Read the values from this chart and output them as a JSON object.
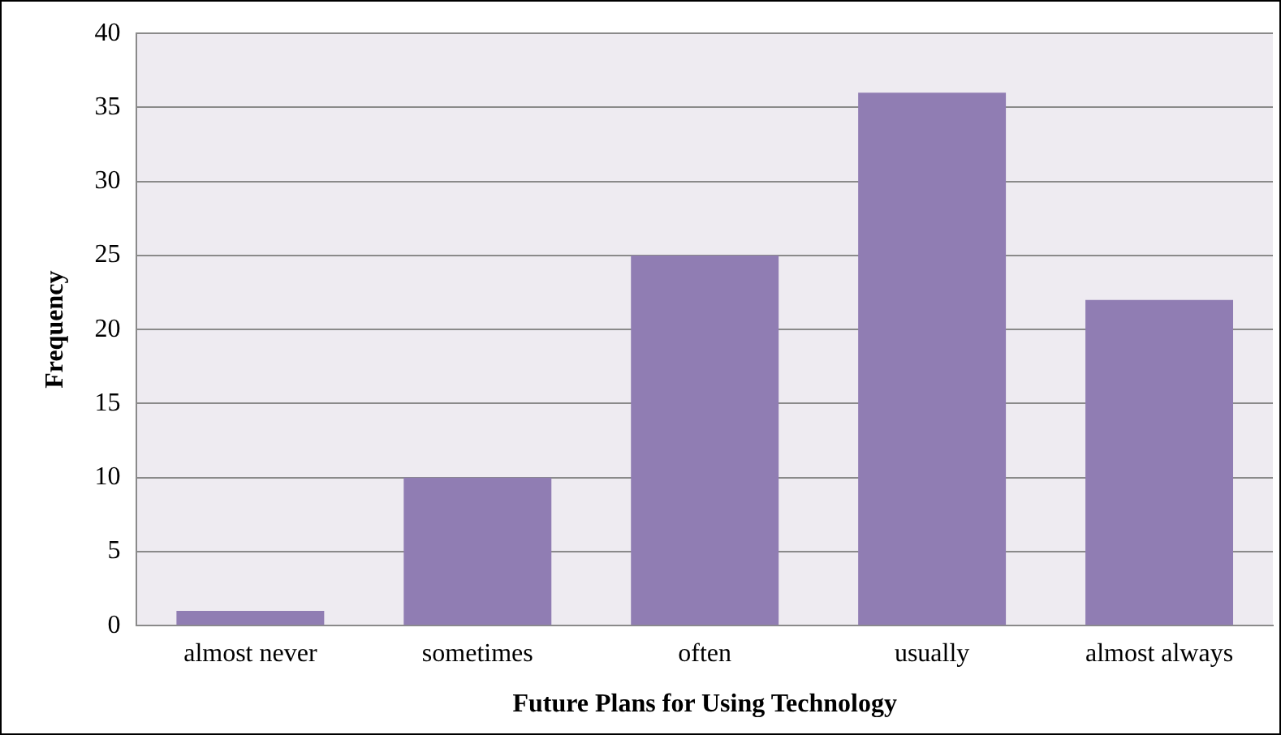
{
  "chart_data": {
    "type": "bar",
    "xlabel": "Future Plans for Using Technology",
    "ylabel": "Frequency",
    "categories": [
      "almost never",
      "sometimes",
      "often",
      "usually",
      "almost always"
    ],
    "values": [
      1,
      10,
      25,
      36,
      22
    ],
    "color": "#907db3",
    "ylim": [
      0,
      40
    ],
    "yticks": [
      0,
      5,
      10,
      15,
      20,
      25,
      30,
      35,
      40
    ],
    "grid": "y",
    "legend": false
  }
}
